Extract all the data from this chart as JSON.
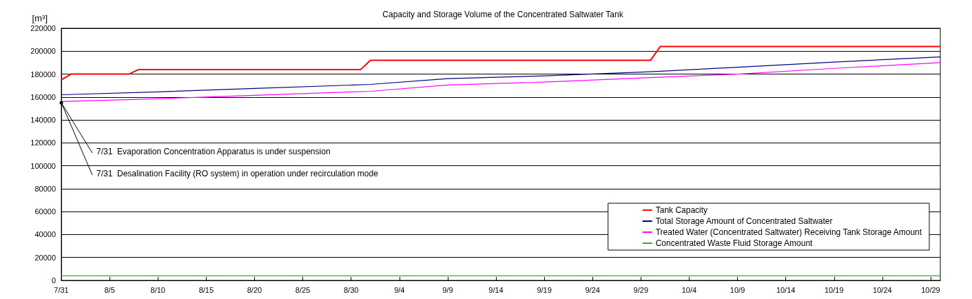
{
  "chart_data": {
    "type": "line",
    "title": "Capacity and Storage Volume of the Concentrated Saltwater Tank",
    "ylabel": "[m³]",
    "xlim": [
      "--07-31",
      "--10-30"
    ],
    "xticks": [
      {
        "value": "--07-31",
        "label": "7/31"
      },
      {
        "value": "--08-05",
        "label": "8/5"
      },
      {
        "value": "--08-10",
        "label": "8/10"
      },
      {
        "value": "--08-15",
        "label": "8/15"
      },
      {
        "value": "--08-20",
        "label": "8/20"
      },
      {
        "value": "--08-25",
        "label": "8/25"
      },
      {
        "value": "--08-30",
        "label": "8/30"
      },
      {
        "value": "--09-04",
        "label": "9/4"
      },
      {
        "value": "--09-09",
        "label": "9/9"
      },
      {
        "value": "--09-14",
        "label": "9/14"
      },
      {
        "value": "--09-19",
        "label": "9/19"
      },
      {
        "value": "--09-24",
        "label": "9/24"
      },
      {
        "value": "--09-29",
        "label": "9/29"
      },
      {
        "value": "--10-04",
        "label": "10/4"
      },
      {
        "value": "--10-09",
        "label": "10/9"
      },
      {
        "value": "--10-14",
        "label": "10/14"
      },
      {
        "value": "--10-19",
        "label": "10/19"
      },
      {
        "value": "--10-24",
        "label": "10/24"
      },
      {
        "value": "--10-29",
        "label": "10/29"
      }
    ],
    "ylim": [
      0,
      220000
    ],
    "yticks": [
      0,
      20000,
      40000,
      60000,
      80000,
      100000,
      120000,
      140000,
      160000,
      180000,
      200000,
      220000
    ],
    "grid": "y",
    "legend": "bottom right",
    "marker": "none",
    "line_style": "solid",
    "series": [
      {
        "name": "Tank Capacity",
        "color": "#ff0000",
        "x": [
          "--07-31",
          "--08-01",
          "--08-07",
          "--08-08",
          "--08-31",
          "--09-01",
          "--09-30",
          "--10-01",
          "--10-30"
        ],
        "values": [
          175000,
          180000,
          180000,
          184000,
          184000,
          192000,
          192000,
          204000,
          204000
        ]
      },
      {
        "name": "Total Storage Amount of Concentrated Saltwater",
        "color": "#000080",
        "x": [
          "--07-31",
          "--08-10",
          "--08-20",
          "--09-01",
          "--09-09",
          "--09-19",
          "--09-30",
          "--10-09",
          "--10-19",
          "--10-30"
        ],
        "values": [
          162000,
          164500,
          167500,
          171000,
          176000,
          178500,
          182000,
          186000,
          190500,
          195000
        ]
      },
      {
        "name": "Treated Water (Concentrated Saltwater) Receiving Tank Storage Amount",
        "color": "#ff00ff",
        "x": [
          "--07-31",
          "--08-10",
          "--08-20",
          "--09-01",
          "--09-09",
          "--09-19",
          "--09-30",
          "--10-09",
          "--10-19",
          "--10-30"
        ],
        "values": [
          156000,
          158500,
          161500,
          165000,
          170500,
          173000,
          177000,
          180000,
          185000,
          190000
        ]
      },
      {
        "name": "Concentrated Waste Fluid Storage Amount",
        "color": "#33aa33",
        "x": [
          "--07-31",
          "--10-30"
        ],
        "values": [
          4000,
          4000
        ]
      }
    ],
    "annotations": [
      {
        "text": "7/31  Evaporation Concentration Apparatus is under suspension",
        "x": "--07-31",
        "y": 155000
      },
      {
        "text": "7/31  Desalination Facility (RO system) in operation under recirculation mode",
        "x": "--07-31",
        "y": 155000
      }
    ]
  }
}
